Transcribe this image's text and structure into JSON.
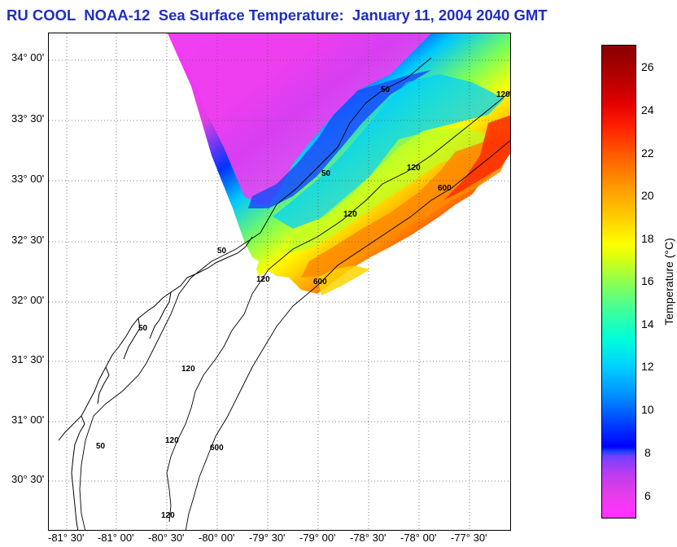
{
  "title": "RU COOL  NOAA-12  Sea Surface Temperature:  January 11, 2004 2040 GMT",
  "map": {
    "latitude_ticks": [
      "34° 00'",
      "33° 30'",
      "33° 00'",
      "32° 30'",
      "32° 00'",
      "31° 30'",
      "31° 00'",
      "30° 30'"
    ],
    "longitude_ticks": [
      "-81° 30'",
      "-81° 00'",
      "-80° 30'",
      "-80° 00'",
      "-79° 30'",
      "-79° 00'",
      "-78° 30'",
      "-78° 00'",
      "-77° 30'"
    ],
    "contour_labels": [
      "50",
      "50",
      "50",
      "50",
      "50",
      "120",
      "120",
      "120",
      "120",
      "120",
      "120",
      "120",
      "600",
      "600",
      "600"
    ],
    "grid": "dotted"
  },
  "colorbar": {
    "label": "Temperature (°C)",
    "ticks": [
      "6",
      "8",
      "10",
      "12",
      "14",
      "16",
      "18",
      "20",
      "22",
      "24",
      "26"
    ],
    "colors": {
      "min": "#ff33ff",
      "blue": "#0000ff",
      "cyan": "#00d0ff",
      "green": "#8fff4f",
      "yellow": "#ffff00",
      "orange": "#ff9900",
      "red": "#ff1e00",
      "max": "#880000"
    }
  }
}
